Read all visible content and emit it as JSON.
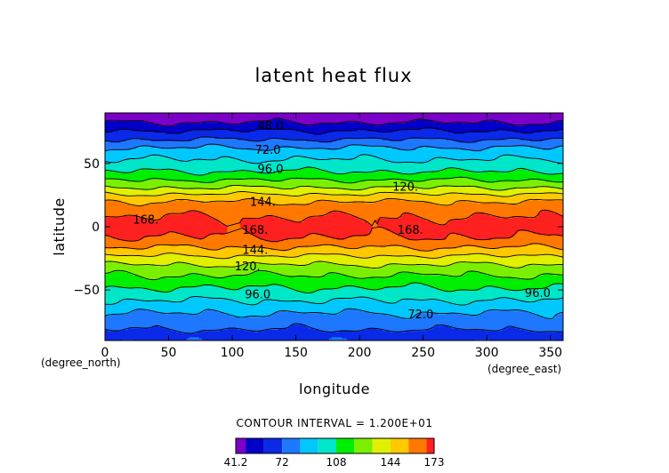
{
  "chart_data": {
    "type": "heatmap",
    "subtype": "filled-contour",
    "title": "latent heat flux",
    "xlabel": "longitude",
    "ylabel": "latitude",
    "x_unit": "(degree_east)",
    "y_unit": "(degree_north)",
    "xlim": [
      0,
      360
    ],
    "ylim": [
      -90,
      90
    ],
    "x_ticks": [
      0,
      50,
      100,
      150,
      200,
      250,
      300,
      350
    ],
    "y_ticks": [
      -50,
      0,
      50
    ],
    "x_tick_labels": [
      "0",
      "50",
      "100",
      "150",
      "200",
      "250",
      "300",
      "350"
    ],
    "y_tick_labels": [
      "−50",
      "0",
      "50"
    ],
    "contour_interval_text": "CONTOUR INTERVAL = 1.200E+01",
    "levels": [
      41.2,
      48,
      60,
      72,
      84,
      96,
      108,
      120,
      132,
      144,
      156,
      168,
      173
    ],
    "colorbar": {
      "colors": [
        "#7b00c8",
        "#0000c8",
        "#0a2ae8",
        "#1e78ff",
        "#00c8ff",
        "#00e6c8",
        "#00ee00",
        "#7af000",
        "#e0f000",
        "#ffc800",
        "#ff7800",
        "#ff2020",
        "#ff9898"
      ],
      "tick_values": [
        41.2,
        72,
        108,
        144,
        173
      ],
      "tick_labels": [
        "41.2",
        "72",
        "108",
        "144",
        "173"
      ]
    },
    "zonal_profile": {
      "lat": [
        -90,
        -85,
        -80,
        -75,
        -70,
        -65,
        -60,
        -55,
        -50,
        -45,
        -40,
        -35,
        -30,
        -25,
        -20,
        -15,
        -10,
        -5,
        0,
        5,
        10,
        15,
        20,
        25,
        30,
        35,
        40,
        45,
        50,
        55,
        60,
        65,
        70,
        75,
        80,
        85,
        90
      ],
      "value": [
        70,
        66,
        74,
        78,
        82,
        88,
        94,
        100,
        106,
        112,
        118,
        124,
        132,
        140,
        150,
        158,
        166,
        170,
        172,
        170,
        166,
        162,
        156,
        146,
        134,
        124,
        114,
        106,
        100,
        94,
        88,
        80,
        70,
        62,
        52,
        44,
        41.2
      ]
    },
    "contour_labels": [
      {
        "text": "48.0",
        "lon": 130,
        "lat": 80
      },
      {
        "text": "72.0",
        "lon": 128,
        "lat": 61
      },
      {
        "text": "96.0",
        "lon": 130,
        "lat": 46
      },
      {
        "text": "120.",
        "lon": 236,
        "lat": 32
      },
      {
        "text": "144.",
        "lon": 124,
        "lat": 20
      },
      {
        "text": "168.",
        "lon": 32,
        "lat": 6
      },
      {
        "text": "168.",
        "lon": 118,
        "lat": -2
      },
      {
        "text": "168.",
        "lon": 240,
        "lat": -2
      },
      {
        "text": "144.",
        "lon": 118,
        "lat": -18
      },
      {
        "text": "120.",
        "lon": 112,
        "lat": -31
      },
      {
        "text": "96.0",
        "lon": 120,
        "lat": -53
      },
      {
        "text": "96.0",
        "lon": 340,
        "lat": -52
      },
      {
        "text": "72.0",
        "lon": 248,
        "lat": -69
      }
    ]
  }
}
